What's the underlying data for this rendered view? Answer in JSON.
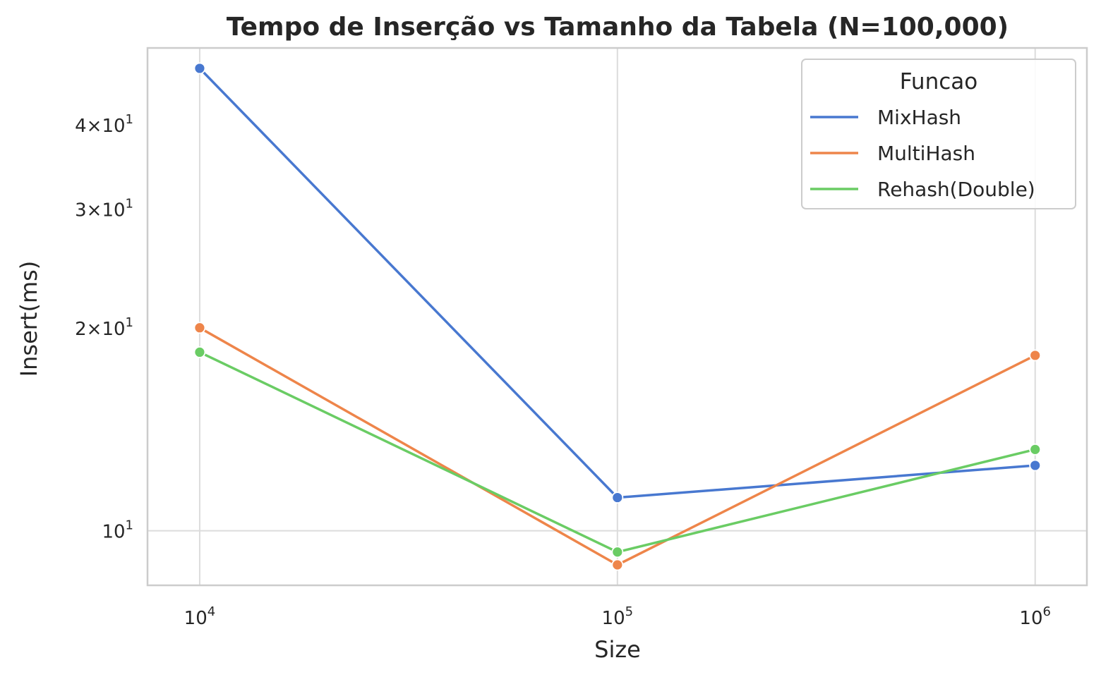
{
  "chart_data": {
    "type": "line",
    "title": "Tempo de Inserção vs Tamanho da Tabela (N=100,000)",
    "xlabel": "Size",
    "ylabel": "Insert(ms)",
    "xscale": "log",
    "yscale": "log",
    "xlim": [
      7500,
      1330000
    ],
    "ylim": [
      8.3,
      52
    ],
    "x": [
      10000,
      100000,
      1000000
    ],
    "x_ticks": [
      {
        "value": 10000,
        "base": "10",
        "exp": "4"
      },
      {
        "value": 100000,
        "base": "10",
        "exp": "5"
      },
      {
        "value": 1000000,
        "base": "10",
        "exp": "6"
      }
    ],
    "y_ticks": [
      {
        "value": 10,
        "mant": "",
        "base": "10",
        "exp": "1"
      },
      {
        "value": 20,
        "mant": "2×",
        "base": "10",
        "exp": "1"
      },
      {
        "value": 30,
        "mant": "3×",
        "base": "10",
        "exp": "1"
      },
      {
        "value": 40,
        "mant": "4×",
        "base": "10",
        "exp": "1"
      }
    ],
    "grid": true,
    "legend": {
      "title": "Funcao",
      "position": "top-right"
    },
    "series": [
      {
        "name": "MixHash",
        "color": "#4878d0",
        "values": [
          48.5,
          11.2,
          12.5
        ]
      },
      {
        "name": "MultiHash",
        "color": "#ee854a",
        "values": [
          20.0,
          8.9,
          18.2
        ]
      },
      {
        "name": "Rehash(Double)",
        "color": "#6acc64",
        "values": [
          18.4,
          9.3,
          13.2
        ]
      }
    ]
  }
}
